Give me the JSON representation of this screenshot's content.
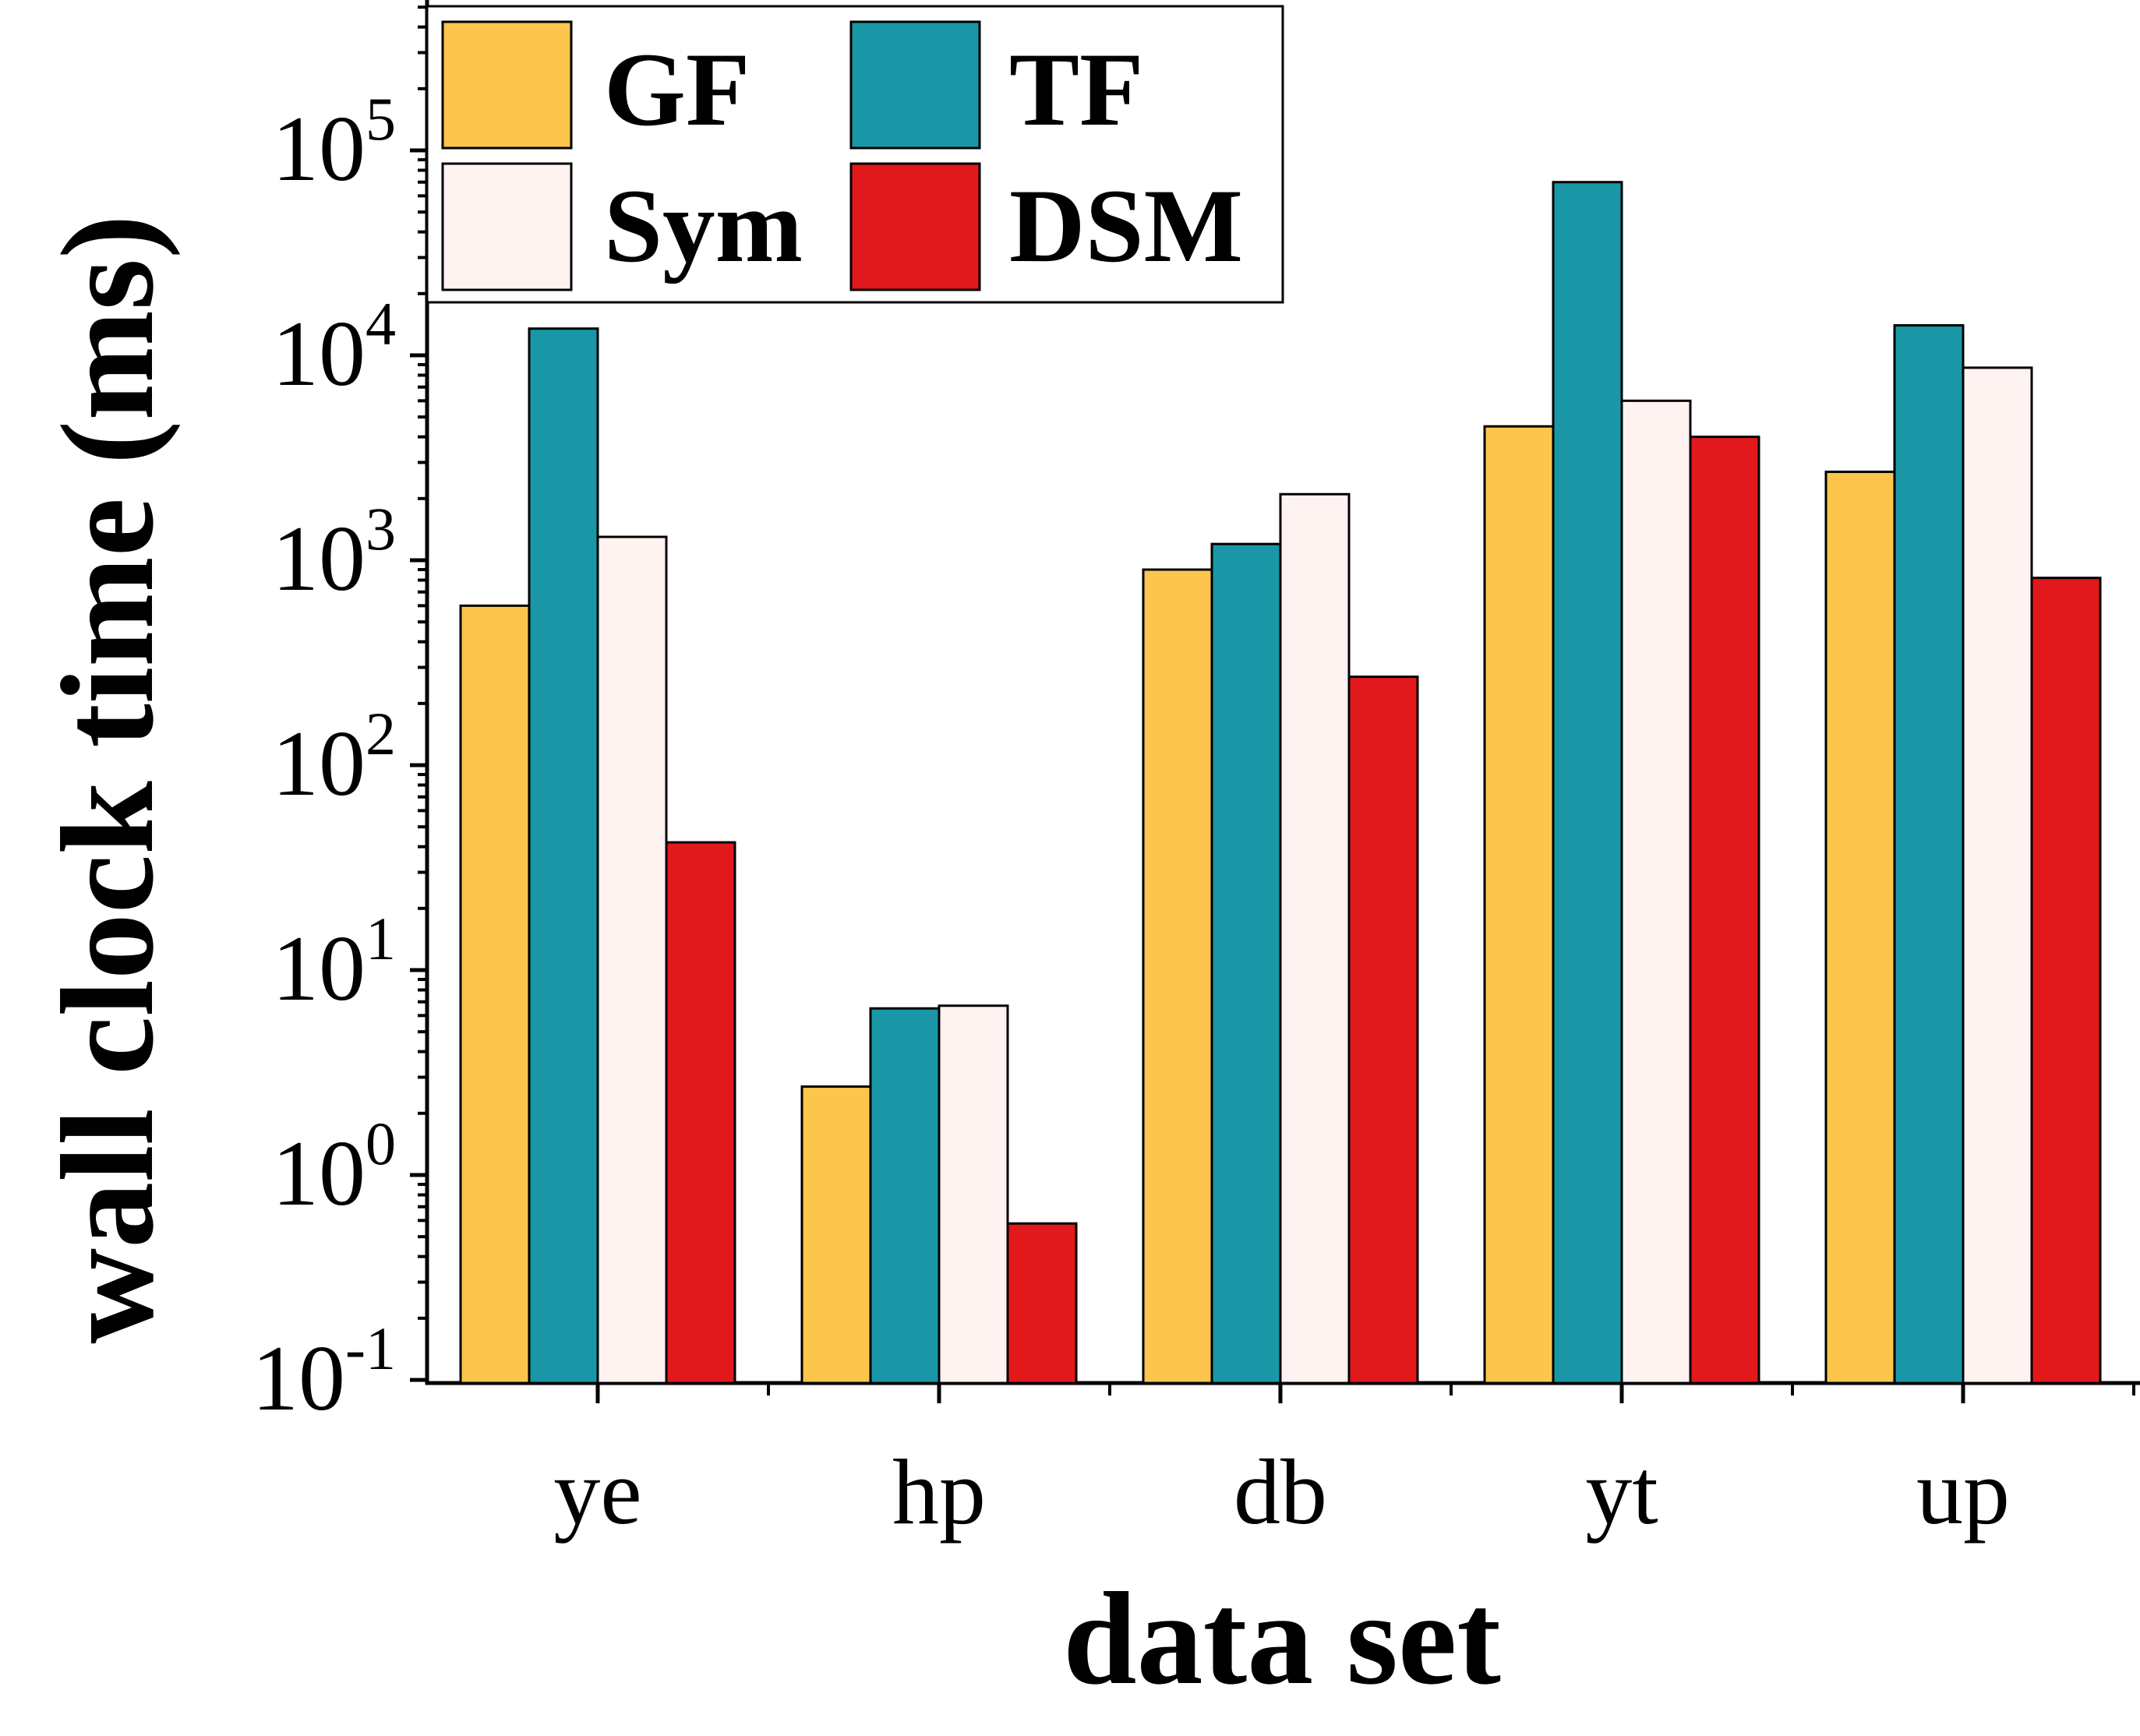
{
  "chart_data": {
    "type": "bar",
    "xlabel": "data set",
    "ylabel": "wall clock time (ms)",
    "y_scale": "log",
    "ylim": [
      0.1,
      500000
    ],
    "grid": false,
    "legend_position": "top-left",
    "categories": [
      "ye",
      "hp",
      "db",
      "yt",
      "up"
    ],
    "y_ticks": [
      {
        "base": "10",
        "exp": "-1"
      },
      {
        "base": "10",
        "exp": "0"
      },
      {
        "base": "10",
        "exp": "1"
      },
      {
        "base": "10",
        "exp": "2"
      },
      {
        "base": "10",
        "exp": "3"
      },
      {
        "base": "10",
        "exp": "4"
      },
      {
        "base": "10",
        "exp": "5"
      }
    ],
    "series": [
      {
        "name": "GF",
        "color": "#FDC54D",
        "values": [
          600,
          2.7,
          900,
          4500,
          2700
        ]
      },
      {
        "name": "TF",
        "color": "#1A97A6",
        "values": [
          13500,
          6.5,
          1200,
          70000,
          14000
        ]
      },
      {
        "name": "Sym",
        "color": "#FFF3F1",
        "values": [
          1300,
          6.7,
          2100,
          6000,
          8700
        ]
      },
      {
        "name": "DSM",
        "color": "#E2191C",
        "values": [
          42,
          0.58,
          270,
          4000,
          820
        ]
      }
    ]
  }
}
